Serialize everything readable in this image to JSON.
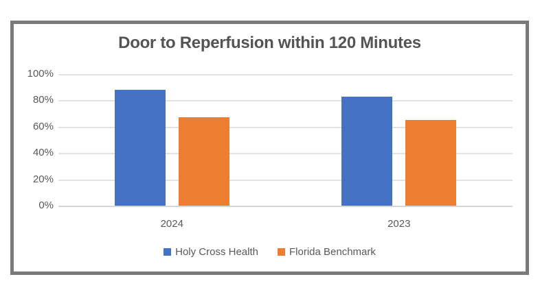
{
  "chart_data": {
    "type": "bar",
    "title": "Door to Reperfusion within 120 Minutes",
    "categories": [
      "2024",
      "2023"
    ],
    "series": [
      {
        "name": "Holy Cross Health",
        "color": "#4472C4",
        "values": [
          88,
          83
        ]
      },
      {
        "name": "Florida Benchmark",
        "color": "#ED7D31",
        "values": [
          67,
          65
        ]
      }
    ],
    "ylim": [
      0,
      100
    ],
    "ytick_labels": [
      "0%",
      "20%",
      "40%",
      "60%",
      "80%",
      "100%"
    ],
    "grid": true,
    "legend_position": "bottom",
    "colors": {
      "grid": "#E2E2E2",
      "frame_border": "#7A7A7A",
      "text": "#595959",
      "title_text": "#545454"
    }
  }
}
